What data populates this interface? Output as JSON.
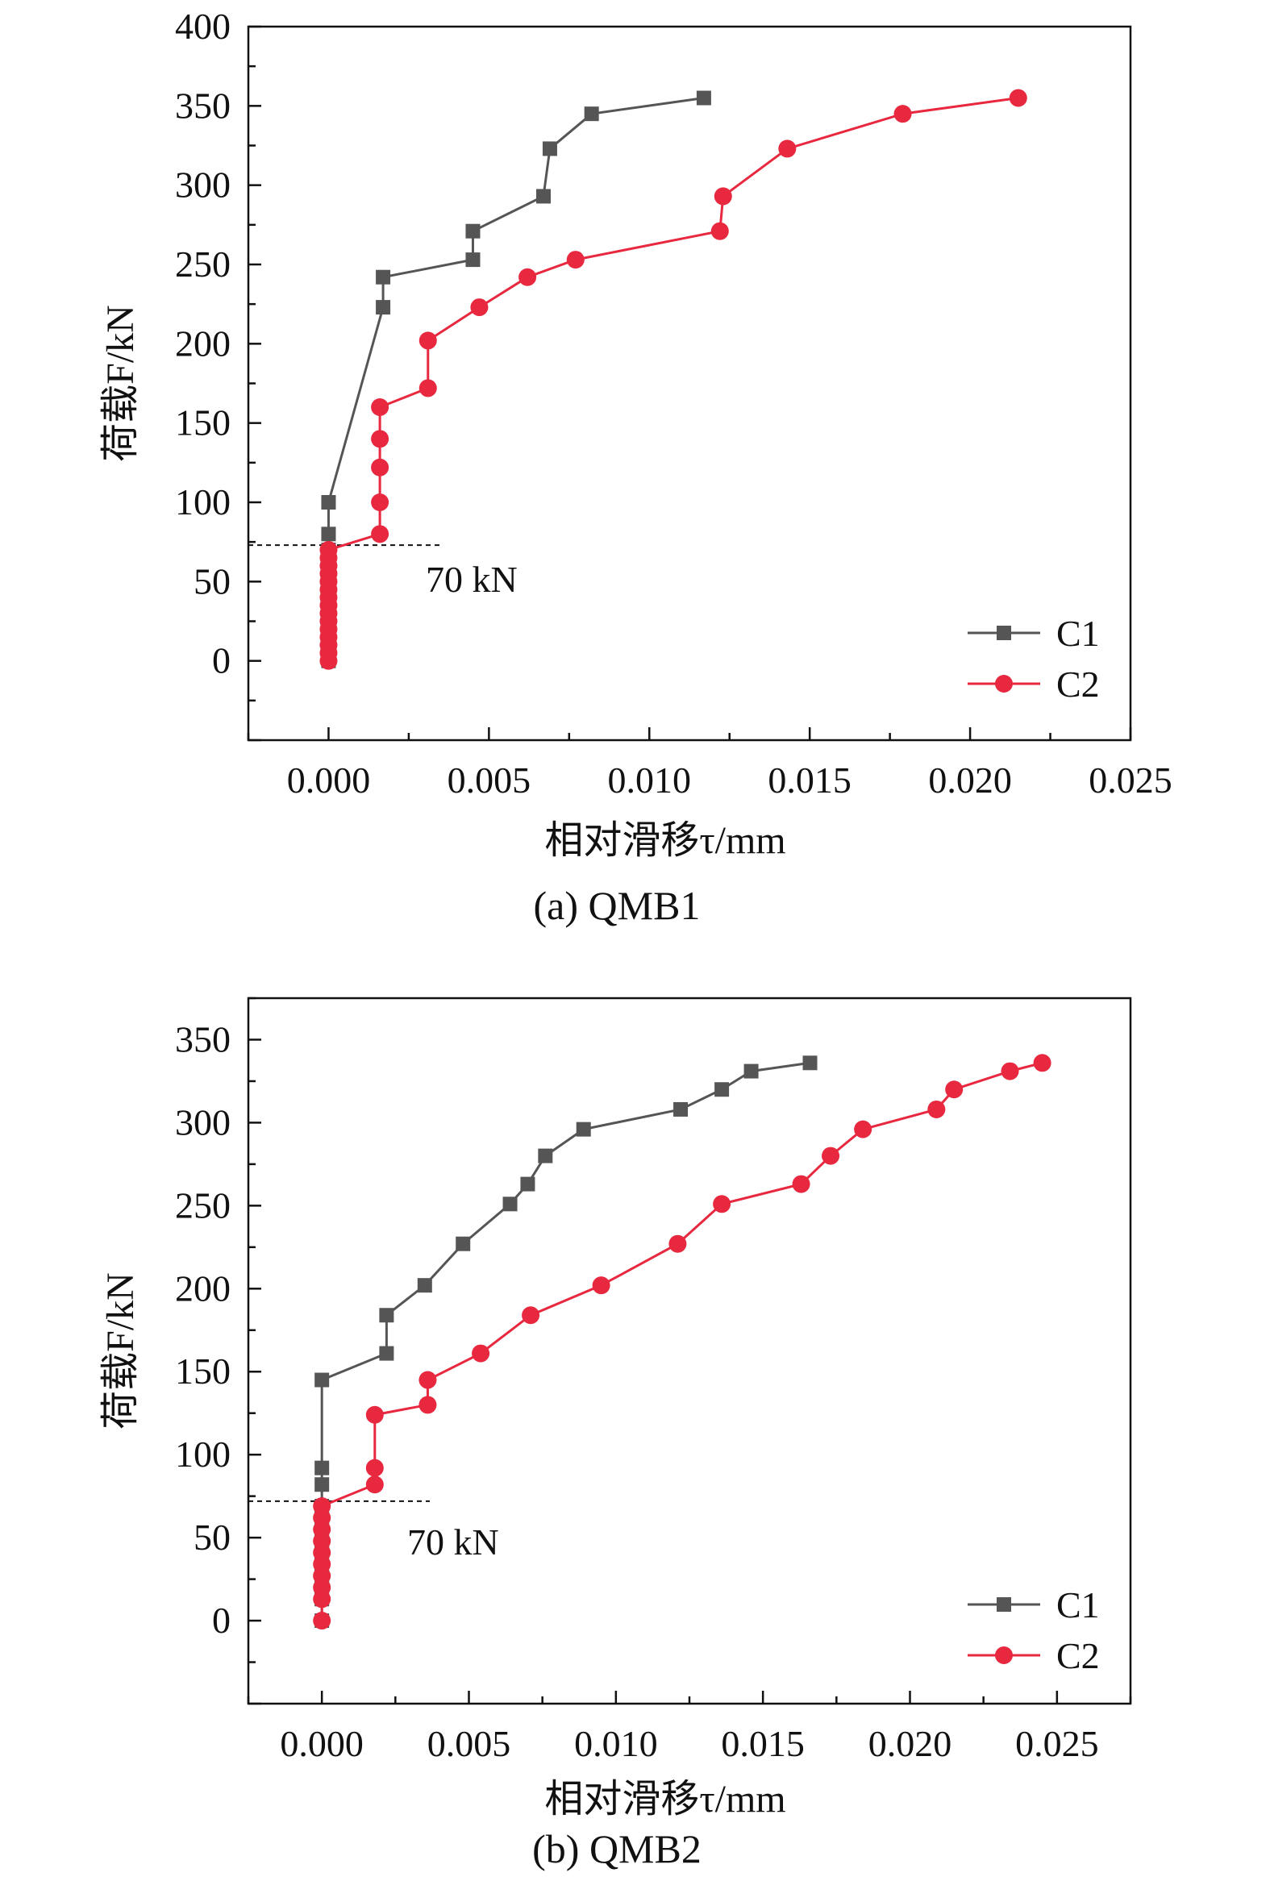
{
  "colors": {
    "C1": "#555555",
    "C2": "#e8283f"
  },
  "chart_data": [
    {
      "type": "line",
      "caption": "(a) QMB1",
      "xlabel": "相对滑移τ/mm",
      "ylabel": "荷载F/kN",
      "xlim": [
        -0.0025,
        0.025
      ],
      "ylim": [
        -50,
        400
      ],
      "xticks": [
        "0.000",
        "0.005",
        "0.010",
        "0.015",
        "0.020",
        "0.025"
      ],
      "yticks": [
        "0",
        "50",
        "100",
        "150",
        "200",
        "250",
        "300",
        "350",
        "400"
      ],
      "legend_position": "bottom-right",
      "annotation": {
        "text": "70 kN",
        "y": 73
      },
      "series": [
        {
          "name": "C1",
          "marker": "square",
          "x": [
            0,
            0,
            0,
            0,
            0,
            0,
            0,
            0,
            0,
            0,
            0,
            0,
            0,
            0,
            0,
            0,
            0,
            0.0017,
            0.0017,
            0.0045,
            0.0045,
            0.0067,
            0.0069,
            0.0082,
            0.0117
          ],
          "y": [
            0,
            5,
            10,
            15,
            20,
            25,
            30,
            35,
            40,
            45,
            50,
            55,
            60,
            65,
            70,
            80,
            100,
            223,
            242,
            253,
            271,
            293,
            323,
            345,
            355
          ]
        },
        {
          "name": "C2",
          "marker": "circle",
          "x": [
            0,
            0,
            0,
            0,
            0,
            0,
            0,
            0,
            0,
            0,
            0,
            0,
            0,
            0,
            0,
            0.0016,
            0.0016,
            0.0016,
            0.0016,
            0.0016,
            0.0031,
            0.0031,
            0.0047,
            0.0062,
            0.0077,
            0.0122,
            0.0123,
            0.0143,
            0.0179,
            0.0215
          ],
          "y": [
            0,
            5,
            10,
            15,
            20,
            25,
            30,
            35,
            40,
            45,
            50,
            55,
            60,
            65,
            70,
            80,
            100,
            122,
            140,
            160,
            172,
            202,
            223,
            242,
            253,
            271,
            293,
            323,
            345,
            355
          ]
        }
      ]
    },
    {
      "type": "line",
      "caption": "(b) QMB2",
      "xlabel": "相对滑移τ/mm",
      "ylabel": "荷载F/kN",
      "xlim": [
        -0.0025,
        0.0275
      ],
      "ylim": [
        -50,
        375
      ],
      "xticks": [
        "0.000",
        "0.005",
        "0.010",
        "0.015",
        "0.020",
        "0.025"
      ],
      "yticks": [
        "0",
        "50",
        "100",
        "150",
        "200",
        "250",
        "300",
        "350"
      ],
      "legend_position": "bottom-right",
      "annotation": {
        "text": "70 kN",
        "y": 72
      },
      "series": [
        {
          "name": "C1",
          "marker": "square",
          "x": [
            0,
            0,
            0,
            0,
            0,
            0,
            0,
            0,
            0,
            0,
            0,
            0,
            0,
            0.0022,
            0.0022,
            0.0035,
            0.0048,
            0.0064,
            0.007,
            0.0076,
            0.0089,
            0.0122,
            0.0136,
            0.0146,
            0.0166
          ],
          "y": [
            0,
            13,
            20,
            27,
            34,
            41,
            48,
            55,
            62,
            69,
            82,
            92,
            145,
            161,
            184,
            202,
            227,
            251,
            263,
            280,
            296,
            308,
            320,
            331,
            336
          ]
        },
        {
          "name": "C2",
          "marker": "circle",
          "x": [
            0,
            0,
            0,
            0,
            0,
            0,
            0,
            0,
            0,
            0,
            0.0018,
            0.0018,
            0.0018,
            0.0036,
            0.0036,
            0.0054,
            0.0071,
            0.0095,
            0.0121,
            0.0136,
            0.0163,
            0.0173,
            0.0184,
            0.0209,
            0.0215,
            0.0234,
            0.0245
          ],
          "y": [
            0,
            13,
            20,
            27,
            34,
            41,
            48,
            55,
            62,
            69,
            82,
            92,
            124,
            130,
            145,
            161,
            184,
            202,
            227,
            251,
            263,
            280,
            296,
            308,
            320,
            331,
            336
          ]
        }
      ]
    }
  ]
}
